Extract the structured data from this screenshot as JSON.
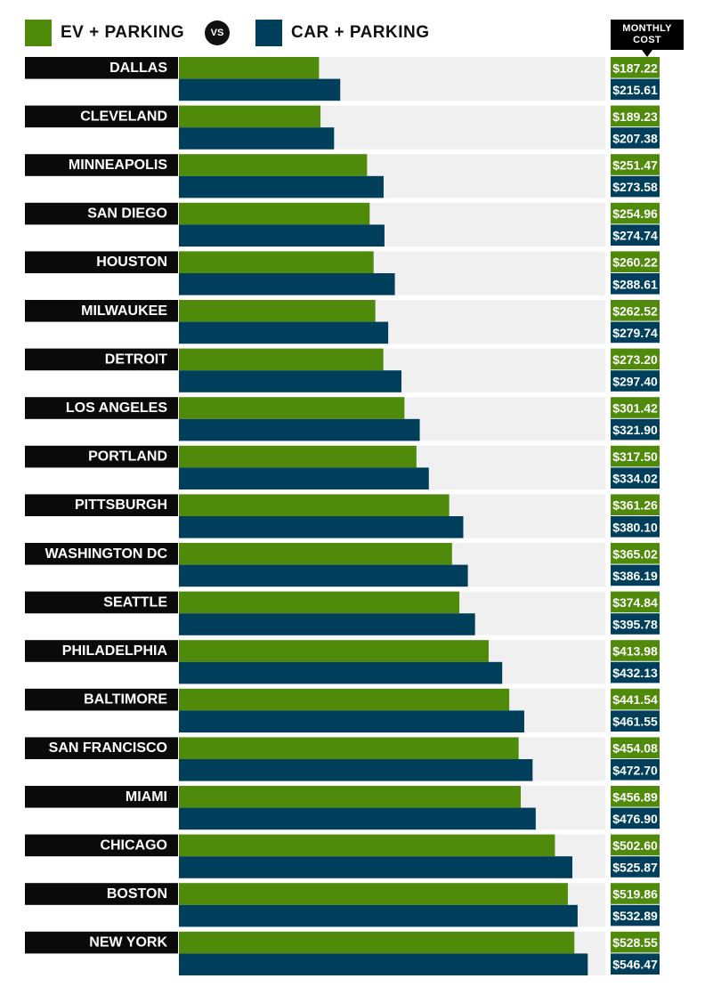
{
  "legend": {
    "ev_label": "EV + PARKING",
    "car_label": "CAR + PARKING",
    "vs_label": "VS",
    "cost_header_line1": "MONTHLY",
    "cost_header_line2": "COST"
  },
  "colors": {
    "ev": "#4f8a0b",
    "car": "#003f5c",
    "city_bg": "#0a0a0a",
    "track_bg": "#f0f0f0"
  },
  "chart_data": {
    "type": "bar",
    "orientation": "horizontal",
    "xlim": [
      0,
      600
    ],
    "categories": [
      "DALLAS",
      "CLEVELAND",
      "MINNEAPOLIS",
      "SAN DIEGO",
      "HOUSTON",
      "MILWAUKEE",
      "DETROIT",
      "LOS ANGELES",
      "PORTLAND",
      "PITTSBURGH",
      "WASHINGTON DC",
      "SEATTLE",
      "PHILADELPHIA",
      "BALTIMORE",
      "SAN FRANCISCO",
      "MIAMI",
      "CHICAGO",
      "BOSTON",
      "NEW YORK"
    ],
    "series": [
      {
        "name": "EV + PARKING",
        "values": [
          187.22,
          189.23,
          251.47,
          254.96,
          260.22,
          262.52,
          273.2,
          301.42,
          317.5,
          361.26,
          365.02,
          374.84,
          413.98,
          441.54,
          454.08,
          456.89,
          502.6,
          519.86,
          528.55
        ],
        "labels": [
          "$187.22",
          "$189.23",
          "$251.47",
          "$254.96",
          "$260.22",
          "$262.52",
          "$273.20",
          "$301.42",
          "$317.50",
          "$361.26",
          "$365.02",
          "$374.84",
          "$413.98",
          "$441.54",
          "$454.08",
          "$456.89",
          "$502.60",
          "$519.86",
          "$528.55"
        ]
      },
      {
        "name": "CAR + PARKING",
        "values": [
          215.61,
          207.38,
          273.58,
          274.74,
          288.61,
          279.74,
          297.4,
          321.9,
          334.02,
          380.1,
          386.19,
          395.78,
          432.13,
          461.55,
          472.7,
          476.9,
          525.87,
          532.89,
          546.47
        ],
        "labels": [
          "$215.61",
          "$207.38",
          "$273.58",
          "$274.74",
          "$288.61",
          "$279.74",
          "$297.40",
          "$321.90",
          "$334.02",
          "$380.10",
          "$386.19",
          "$395.78",
          "$432.13",
          "$461.55",
          "$472.70",
          "$476.90",
          "$525.87",
          "$532.89",
          "$546.47"
        ]
      }
    ]
  }
}
